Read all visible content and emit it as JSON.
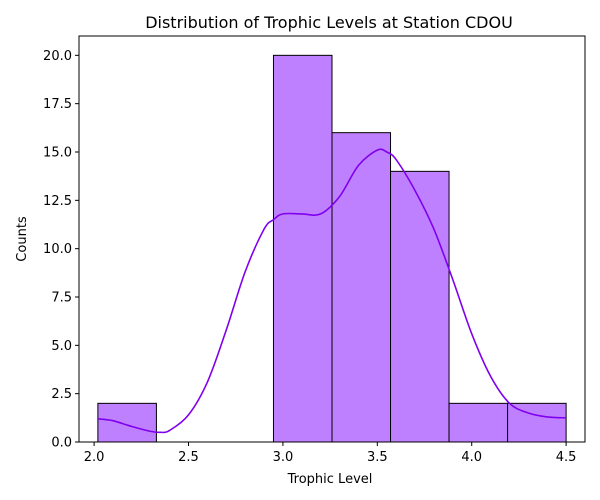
{
  "chart_data": {
    "type": "histogram",
    "title": "Distribution of Trophic Levels at Station CDOU",
    "xlabel": "Trophic Level",
    "ylabel": "Counts",
    "xlim": [
      1.92,
      4.6
    ],
    "ylim": [
      0,
      21
    ],
    "xticks": [
      2.0,
      2.5,
      3.0,
      3.5,
      4.0,
      4.5
    ],
    "xtick_labels": [
      "2.0",
      "2.5",
      "3.0",
      "3.5",
      "4.0",
      "4.5"
    ],
    "yticks": [
      0,
      2.5,
      5,
      7.5,
      10,
      12.5,
      15,
      17.5,
      20
    ],
    "ytick_labels": [
      "0.0",
      "2.5",
      "5.0",
      "7.5",
      "10.0",
      "12.5",
      "15.0",
      "17.5",
      "20.0"
    ],
    "bins": [
      {
        "x0": 2.02,
        "x1": 2.33,
        "count": 2
      },
      {
        "x0": 2.33,
        "x1": 2.64,
        "count": 0
      },
      {
        "x0": 2.64,
        "x1": 2.95,
        "count": 0
      },
      {
        "x0": 2.95,
        "x1": 3.26,
        "count": 20
      },
      {
        "x0": 3.26,
        "x1": 3.57,
        "count": 16
      },
      {
        "x0": 3.57,
        "x1": 3.88,
        "count": 14
      },
      {
        "x0": 3.88,
        "x1": 4.19,
        "count": 2
      },
      {
        "x0": 4.19,
        "x1": 4.5,
        "count": 2
      }
    ],
    "kde": {
      "x": [
        2.02,
        2.1,
        2.2,
        2.3,
        2.35,
        2.4,
        2.5,
        2.6,
        2.7,
        2.8,
        2.9,
        2.95,
        3.0,
        3.1,
        3.2,
        3.3,
        3.4,
        3.5,
        3.55,
        3.6,
        3.7,
        3.8,
        3.9,
        4.0,
        4.1,
        4.2,
        4.3,
        4.4,
        4.5
      ],
      "y": [
        1.2,
        1.1,
        0.8,
        0.55,
        0.5,
        0.6,
        1.4,
        3.1,
        5.8,
        8.8,
        11.0,
        11.5,
        11.8,
        11.8,
        11.8,
        12.7,
        14.3,
        15.1,
        15.0,
        14.6,
        13.0,
        11.0,
        8.4,
        5.6,
        3.4,
        2.0,
        1.5,
        1.3,
        1.25
      ]
    },
    "colors": {
      "bar_fill": "#bf80ff",
      "bar_edge": "#000000",
      "kde_line": "#8000ee"
    },
    "grid": false,
    "legend": "none"
  }
}
